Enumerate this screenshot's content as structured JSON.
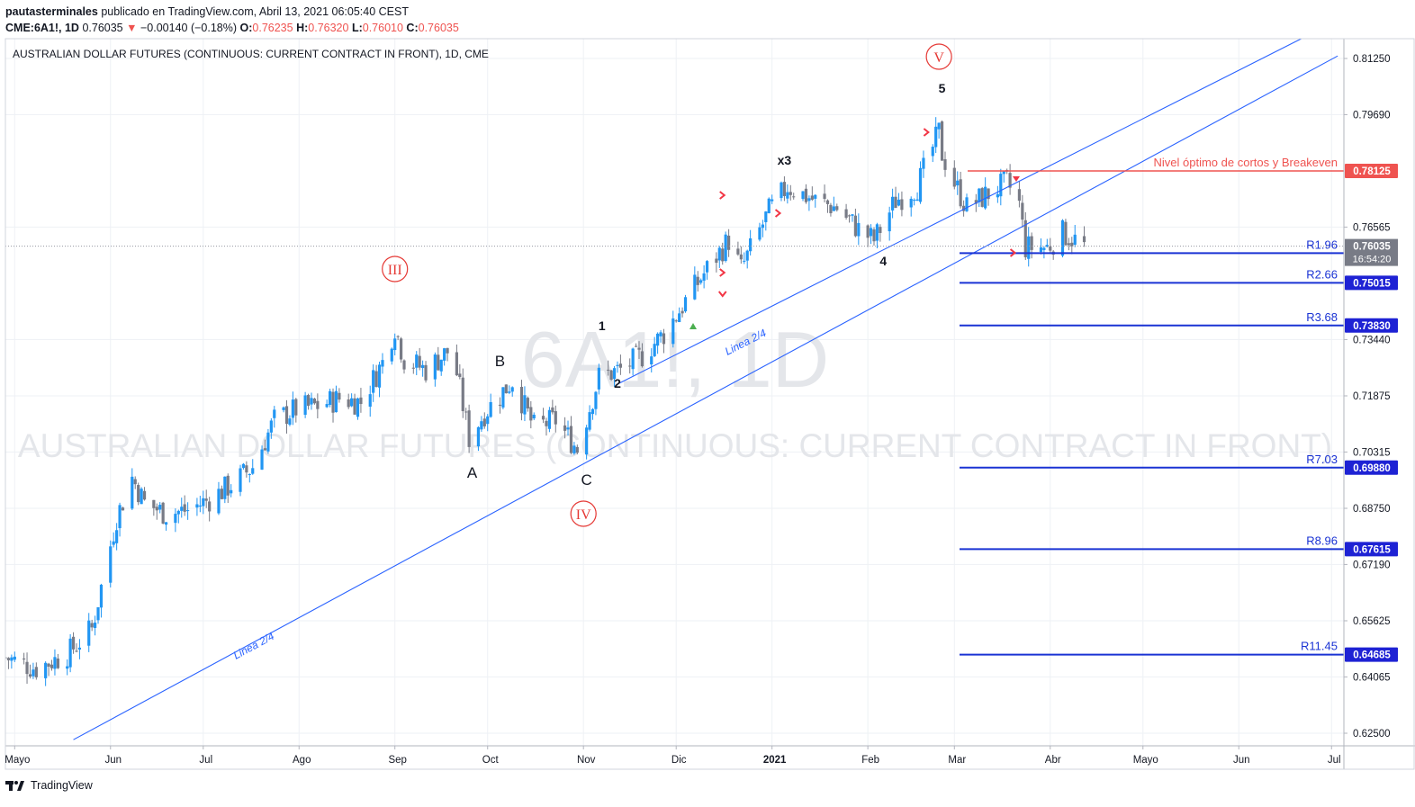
{
  "header": {
    "publisher": "pautasterminales",
    "published_text": "publicado en TradingView.com, Abril 13, 2021 06:05:40 CEST",
    "symbol": "CME:6A1!, 1D",
    "last": "0.76035",
    "change": "−0.00140 (−0.18%)",
    "o_label": "O:",
    "o": "0.76235",
    "h_label": "H:",
    "h": "0.76320",
    "l_label": "L:",
    "l": "0.76010",
    "c_label": "C:",
    "c": "0.76035"
  },
  "footer": {
    "brand": "TradingView"
  },
  "colors": {
    "up": "#2196f3",
    "down": "#787b86",
    "trend": "#2962ff",
    "level_red": "#ef5350",
    "level_blue": "#1a33d4",
    "label_red": "#e53935"
  },
  "chart_data": {
    "type": "candlestick",
    "title": "AUSTRALIAN DOLLAR FUTURES (CONTINUOUS: CURRENT CONTRACT IN FRONT), 1D, CME",
    "watermark": {
      "symbol": "6A1!, 1D",
      "name": "AUSTRALIAN DOLLAR FUTURES (CONTINUOUS: CURRENT CONTRACT IN FRONT)"
    },
    "ylim": [
      0.6215,
      0.818
    ],
    "y_ticks": [
      "0.81250",
      "0.79690",
      "0.76565",
      "0.73440",
      "0.71875",
      "0.70315",
      "0.68750",
      "0.67190",
      "0.65625",
      "0.64065",
      "0.62500"
    ],
    "x_ticks": [
      {
        "label": "Mayo",
        "date": "2020-05-01"
      },
      {
        "label": "Jun",
        "date": "2020-06-01"
      },
      {
        "label": "Jul",
        "date": "2020-07-01"
      },
      {
        "label": "Ago",
        "date": "2020-08-01"
      },
      {
        "label": "Sep",
        "date": "2020-09-01"
      },
      {
        "label": "Oct",
        "date": "2020-10-01"
      },
      {
        "label": "Nov",
        "date": "2020-11-01"
      },
      {
        "label": "Dic",
        "date": "2020-12-01"
      },
      {
        "label": "2021",
        "date": "2021-01-01"
      },
      {
        "label": "Feb",
        "date": "2021-02-01"
      },
      {
        "label": "Mar",
        "date": "2021-03-01"
      },
      {
        "label": "Abr",
        "date": "2021-04-01"
      },
      {
        "label": "Mayo",
        "date": "2021-05-01"
      },
      {
        "label": "Jun",
        "date": "2021-06-01"
      },
      {
        "label": "Jul",
        "date": "2021-07-01"
      }
    ],
    "xlim": [
      "2020-04-28",
      "2021-07-05"
    ],
    "grid": true,
    "price_line": {
      "value": 0.76035,
      "label": "0.76035",
      "countdown": "16:54:20"
    },
    "close_path": [
      [
        "2020-04-28",
        0.646
      ],
      [
        "2020-05-08",
        0.643
      ],
      [
        "2020-05-18",
        0.647
      ],
      [
        "2020-05-26",
        0.654
      ],
      [
        "2020-06-03",
        0.685
      ],
      [
        "2020-06-08",
        0.696
      ],
      [
        "2020-06-12",
        0.689
      ],
      [
        "2020-06-19",
        0.686
      ],
      [
        "2020-06-26",
        0.687
      ],
      [
        "2020-07-03",
        0.69
      ],
      [
        "2020-07-10",
        0.694
      ],
      [
        "2020-07-17",
        0.699
      ],
      [
        "2020-07-24",
        0.712
      ],
      [
        "2020-07-31",
        0.715
      ],
      [
        "2020-08-07",
        0.716
      ],
      [
        "2020-08-14",
        0.718
      ],
      [
        "2020-08-21",
        0.717
      ],
      [
        "2020-08-28",
        0.728
      ],
      [
        "2020-09-01",
        0.738
      ],
      [
        "2020-09-04",
        0.729
      ],
      [
        "2020-09-11",
        0.726
      ],
      [
        "2020-09-18",
        0.731
      ],
      [
        "2020-09-21",
        0.725
      ],
      [
        "2020-09-25",
        0.707
      ],
      [
        "2020-09-30",
        0.714
      ],
      [
        "2020-10-09",
        0.723
      ],
      [
        "2020-10-16",
        0.71
      ],
      [
        "2020-10-23",
        0.712
      ],
      [
        "2020-10-30",
        0.704
      ],
      [
        "2020-11-06",
        0.724
      ],
      [
        "2020-11-13",
        0.726
      ],
      [
        "2020-11-20",
        0.73
      ],
      [
        "2020-11-27",
        0.736
      ],
      [
        "2020-12-04",
        0.745
      ],
      [
        "2020-12-11",
        0.754
      ],
      [
        "2020-12-18",
        0.762
      ],
      [
        "2020-12-22",
        0.754
      ],
      [
        "2020-12-31",
        0.77
      ],
      [
        "2021-01-06",
        0.777
      ],
      [
        "2021-01-08",
        0.776
      ],
      [
        "2021-01-15",
        0.773
      ],
      [
        "2021-01-22",
        0.771
      ],
      [
        "2021-01-29",
        0.765
      ],
      [
        "2021-02-03",
        0.762
      ],
      [
        "2021-02-10",
        0.773
      ],
      [
        "2021-02-17",
        0.777
      ],
      [
        "2021-02-24",
        0.792
      ],
      [
        "2021-02-25",
        0.786
      ],
      [
        "2021-03-01",
        0.778
      ],
      [
        "2021-03-05",
        0.771
      ],
      [
        "2021-03-12",
        0.775
      ],
      [
        "2021-03-18",
        0.778
      ],
      [
        "2021-03-22",
        0.772
      ],
      [
        "2021-03-24",
        0.76
      ],
      [
        "2021-03-31",
        0.76
      ],
      [
        "2021-04-05",
        0.764
      ],
      [
        "2021-04-09",
        0.762
      ],
      [
        "2021-04-12",
        0.76035
      ]
    ],
    "annotations": [
      {
        "text": "III",
        "date": "2020-09-01",
        "price": 0.754,
        "style": "circle"
      },
      {
        "text": "IV",
        "date": "2020-11-01",
        "price": 0.686,
        "style": "circle"
      },
      {
        "text": "V",
        "date": "2021-02-24",
        "price": 0.813,
        "style": "circle"
      },
      {
        "text": "A",
        "date": "2020-09-26",
        "price": 0.696,
        "style": "big"
      },
      {
        "text": "B",
        "date": "2020-10-05",
        "price": 0.727,
        "style": "big"
      },
      {
        "text": "C",
        "date": "2020-11-02",
        "price": 0.694,
        "style": "big"
      },
      {
        "text": "1",
        "date": "2020-11-07",
        "price": 0.737,
        "style": "small"
      },
      {
        "text": "2",
        "date": "2020-11-12",
        "price": 0.721,
        "style": "small"
      },
      {
        "text": "x3",
        "date": "2021-01-05",
        "price": 0.783,
        "style": "small"
      },
      {
        "text": "4",
        "date": "2021-02-06",
        "price": 0.755,
        "style": "small"
      },
      {
        "text": "5",
        "date": "2021-02-25",
        "price": 0.803,
        "style": "small"
      }
    ],
    "trendlines": [
      {
        "label": "Linea 2/4",
        "from": [
          "2020-05-20",
          0.6232
        ],
        "to": [
          "2021-07-03",
          0.8132
        ]
      },
      {
        "label": "Linea 2/4",
        "from": [
          "2020-11-12",
          0.722
        ],
        "to": [
          "2021-06-24",
          0.8192
        ]
      }
    ],
    "levels": [
      {
        "label": "Nivel óptimo de cortos y Breakeven",
        "value": 0.78125,
        "tag": "0.78125",
        "color": "red"
      },
      {
        "label": "R1.96",
        "value": 0.7584,
        "tag": "0.75840",
        "color": "blue"
      },
      {
        "label": "R2.66",
        "value": 0.75015,
        "tag": "0.75015",
        "color": "blue"
      },
      {
        "label": "R3.68",
        "value": 0.7383,
        "tag": "0.73830",
        "color": "blue"
      },
      {
        "label": "R7.03",
        "value": 0.6988,
        "tag": "0.69880",
        "color": "blue"
      },
      {
        "label": "R8.96",
        "value": 0.67615,
        "tag": "0.67615",
        "color": "blue"
      },
      {
        "label": "R11.45",
        "value": 0.64685,
        "tag": "0.64685",
        "color": "blue"
      }
    ],
    "markers": [
      {
        "date": "2020-12-16",
        "price": 0.7745,
        "kind": "chev-right"
      },
      {
        "date": "2020-12-16",
        "price": 0.753,
        "kind": "chev-right"
      },
      {
        "date": "2020-12-16",
        "price": 0.747,
        "kind": "chev-down"
      },
      {
        "date": "2021-01-03",
        "price": 0.7695,
        "kind": "chev-right"
      },
      {
        "date": "2021-02-20",
        "price": 0.792,
        "kind": "chev-right"
      },
      {
        "date": "2021-03-20",
        "price": 0.7585,
        "kind": "chev-right"
      },
      {
        "date": "2021-03-21",
        "price": 0.779,
        "kind": "tri-down"
      }
    ]
  }
}
